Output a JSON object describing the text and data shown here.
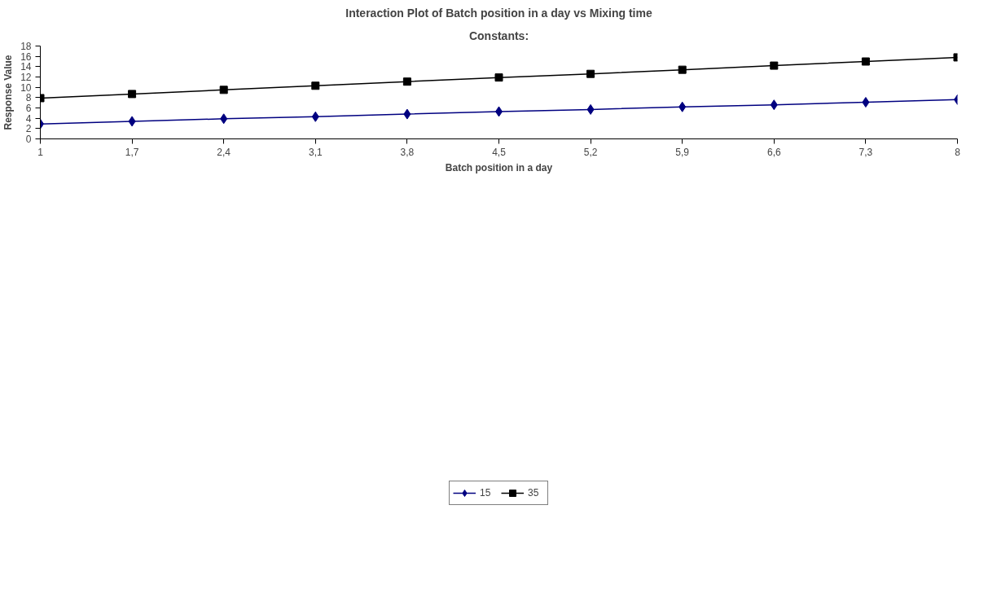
{
  "chart_data": {
    "type": "line",
    "title": "Interaction Plot of Batch position in a day vs Mixing time",
    "subtitle": "Constants:",
    "xlabel": "Batch position in a day",
    "ylabel": "Response Value",
    "categories": [
      "1",
      "1,7",
      "2,4",
      "3,1",
      "3,8",
      "4,5",
      "5,2",
      "5,9",
      "6,6",
      "7,3",
      "8"
    ],
    "series": [
      {
        "name": "15",
        "color": "#000080",
        "marker": "diamond",
        "values": [
          2.9,
          3.4,
          3.9,
          4.3,
          4.8,
          5.3,
          5.7,
          6.2,
          6.6,
          7.1,
          7.6
        ]
      },
      {
        "name": "35",
        "color": "#000000",
        "marker": "square",
        "values": [
          7.9,
          8.7,
          9.5,
          10.3,
          11.1,
          11.9,
          12.6,
          13.4,
          14.2,
          15.0,
          15.8
        ]
      }
    ],
    "ylim": [
      0,
      18
    ],
    "yticks": [
      0,
      2,
      4,
      6,
      8,
      10,
      12,
      14,
      16,
      18
    ],
    "grid": false,
    "legend": "bottom",
    "line_style": "solid"
  }
}
